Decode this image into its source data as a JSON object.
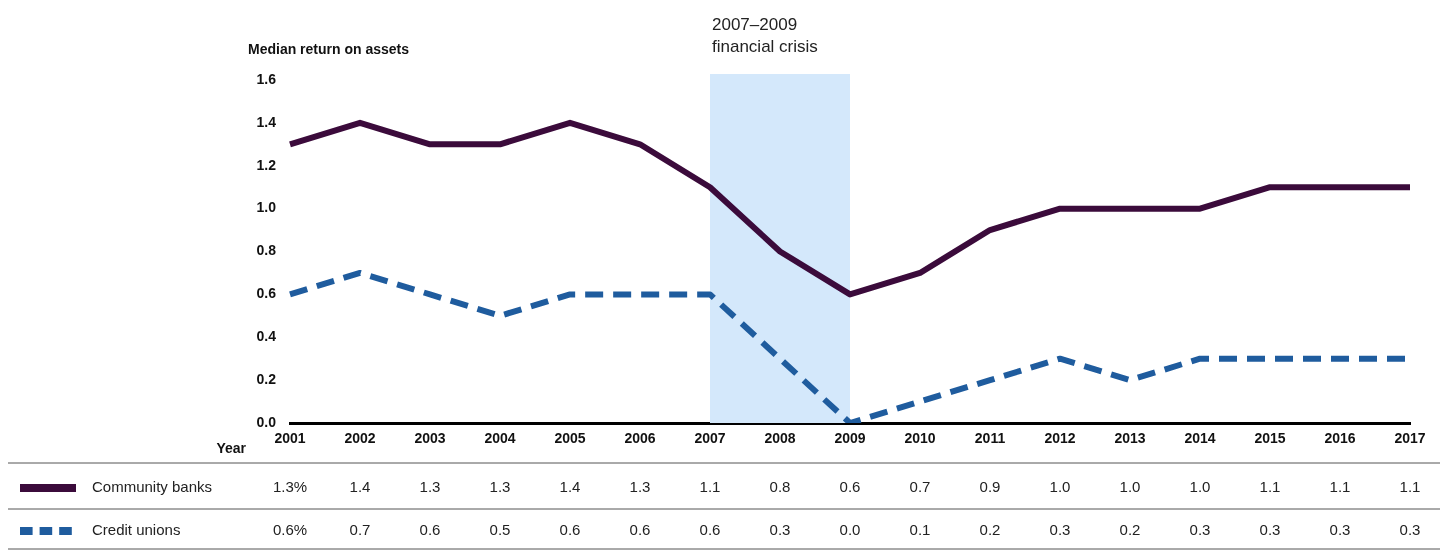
{
  "chart_data": {
    "type": "line",
    "ylabel": "Median return on assets",
    "xlabel": "Year",
    "categories": [
      "2001",
      "2002",
      "2003",
      "2004",
      "2005",
      "2006",
      "2007",
      "2008",
      "2009",
      "2010",
      "2011",
      "2012",
      "2013",
      "2014",
      "2015",
      "2016",
      "2017"
    ],
    "series": [
      {
        "name": "Community banks",
        "color": "#3b0b3b",
        "line_style": "solid",
        "values": [
          1.3,
          1.4,
          1.3,
          1.3,
          1.4,
          1.3,
          1.1,
          0.8,
          0.6,
          0.7,
          0.9,
          1.0,
          1.0,
          1.0,
          1.1,
          1.1,
          1.1
        ],
        "value_labels": [
          "1.3%",
          "1.4",
          "1.3",
          "1.3",
          "1.4",
          "1.3",
          "1.1",
          "0.8",
          "0.6",
          "0.7",
          "0.9",
          "1.0",
          "1.0",
          "1.0",
          "1.1",
          "1.1",
          "1.1"
        ]
      },
      {
        "name": "Credit unions",
        "color": "#1f5c9e",
        "line_style": "dashed",
        "values": [
          0.6,
          0.7,
          0.6,
          0.5,
          0.6,
          0.6,
          0.6,
          0.3,
          0.0,
          0.1,
          0.2,
          0.3,
          0.2,
          0.3,
          0.3,
          0.3,
          0.3
        ],
        "value_labels": [
          "0.6%",
          "0.7",
          "0.6",
          "0.5",
          "0.6",
          "0.6",
          "0.6",
          "0.3",
          "0.0",
          "0.1",
          "0.2",
          "0.3",
          "0.2",
          "0.3",
          "0.3",
          "0.3",
          "0.3"
        ]
      }
    ],
    "ylim": [
      0,
      1.6
    ],
    "yticks": [
      {
        "value": 0,
        "label": "0.0"
      },
      0.2,
      0.4,
      0.6,
      0.8,
      {
        "value": 1,
        "label": "1.0"
      },
      1.2,
      1.4,
      1.6
    ],
    "bands": [
      {
        "axis": "x",
        "from": "2007",
        "to": "2009",
        "label": "2007–2009 financial crisis",
        "color": "#d4e8fb"
      }
    ],
    "grid": false,
    "legend": "bottom",
    "marker": "none"
  }
}
